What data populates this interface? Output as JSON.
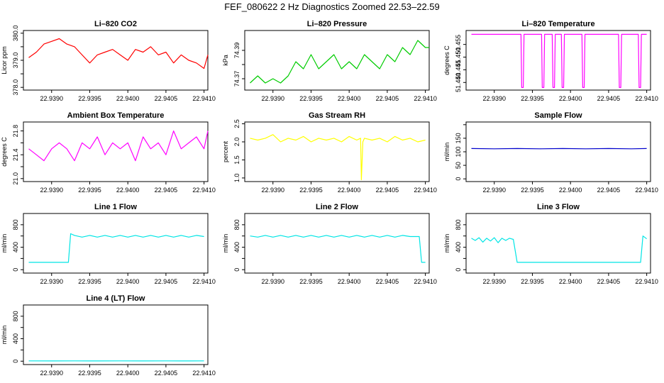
{
  "main_title": "FEF_080622  2 Hz Diagnostics Zoomed 22.53–22.59",
  "x_ticks": [
    "22.9390",
    "22.9395",
    "22.9400",
    "22.9405",
    "22.9410"
  ],
  "chart_data": [
    {
      "type": "line",
      "title": "Li–820 CO2",
      "ylabel": "Licor ppm",
      "color": "#ff0000",
      "xlim": [
        22.93863,
        22.94105
      ],
      "ylim": [
        377.9,
        380.1
      ],
      "yticks": [
        378.0,
        378.5,
        379.0,
        379.5,
        380.0
      ],
      "ytick_labels": [
        "378.0",
        "",
        "379.0",
        "",
        "380.0"
      ],
      "series": [
        {
          "x": [
            22.9387,
            22.9388,
            22.9389,
            22.939,
            22.9391,
            22.9392,
            22.9393,
            22.9394,
            22.9395,
            22.9396,
            22.9397,
            22.9398,
            22.9399,
            22.94,
            22.9401,
            22.9402,
            22.9403,
            22.9404,
            22.9405,
            22.9406,
            22.9407,
            22.9408,
            22.9409,
            22.941,
            22.94105
          ],
          "y": [
            379.1,
            379.3,
            379.6,
            379.7,
            379.8,
            379.6,
            379.5,
            379.2,
            378.9,
            379.2,
            379.3,
            379.4,
            379.2,
            379.0,
            379.4,
            379.3,
            379.5,
            379.2,
            379.3,
            378.9,
            379.2,
            379.0,
            378.9,
            378.7,
            379.2
          ]
        }
      ]
    },
    {
      "type": "line",
      "title": "Li–820 Pressure",
      "ylabel": "kPa",
      "color": "#00cc00",
      "xlim": [
        22.93863,
        22.94105
      ],
      "ylim": [
        74.362,
        74.404
      ],
      "yticks": [
        74.37,
        74.38,
        74.39
      ],
      "ytick_labels": [
        "74.37",
        "",
        "74.39"
      ],
      "series": [
        {
          "x": [
            22.9387,
            22.9388,
            22.9389,
            22.939,
            22.9391,
            22.9392,
            22.9393,
            22.9394,
            22.9395,
            22.9396,
            22.9397,
            22.9398,
            22.9399,
            22.94,
            22.9401,
            22.9402,
            22.9403,
            22.9404,
            22.9405,
            22.9406,
            22.9407,
            22.9408,
            22.9409,
            22.941,
            22.94105
          ],
          "y": [
            74.367,
            74.372,
            74.367,
            74.37,
            74.367,
            74.372,
            74.382,
            74.377,
            74.387,
            74.377,
            74.382,
            74.387,
            74.377,
            74.382,
            74.377,
            74.387,
            74.382,
            74.377,
            74.387,
            74.382,
            74.392,
            74.387,
            74.397,
            74.392,
            74.392
          ]
        }
      ]
    },
    {
      "type": "line",
      "title": "Li–820 Temperature",
      "ylabel": "degrees C",
      "color": "#ff00ff",
      "xlim": [
        22.93863,
        22.94105
      ],
      "ylim": [
        51.437,
        51.4605
      ],
      "yticks": [
        51.44,
        51.445,
        51.45,
        51.455
      ],
      "ytick_labels": [
        "51.440",
        "51.445",
        "51.450",
        "51.455"
      ],
      "series": [
        {
          "x": [
            22.9387,
            22.93935,
            22.93936,
            22.93938,
            22.93939,
            22.93962,
            22.93963,
            22.93965,
            22.93966,
            22.93976,
            22.93977,
            22.93979,
            22.9398,
            22.93988,
            22.93989,
            22.93991,
            22.93992,
            22.94015,
            22.94016,
            22.94018,
            22.94019,
            22.94063,
            22.94064,
            22.94066,
            22.94067,
            22.94089,
            22.9409,
            22.94092,
            22.94093,
            22.941
          ],
          "y": [
            51.459,
            51.459,
            51.438,
            51.438,
            51.459,
            51.459,
            51.438,
            51.438,
            51.459,
            51.459,
            51.438,
            51.438,
            51.459,
            51.459,
            51.438,
            51.438,
            51.459,
            51.459,
            51.438,
            51.438,
            51.459,
            51.459,
            51.438,
            51.438,
            51.459,
            51.459,
            51.438,
            51.438,
            51.459,
            51.459
          ]
        }
      ]
    },
    {
      "type": "line",
      "title": "Ambient Box Temperature",
      "ylabel": "degrees C",
      "color": "#ff00ff",
      "xlim": [
        22.93863,
        22.94105
      ],
      "ylim": [
        20.95,
        21.95
      ],
      "yticks": [
        21.0,
        21.2,
        21.4,
        21.6,
        21.8
      ],
      "ytick_labels": [
        "21.0",
        "",
        "21.4",
        "",
        "21.8"
      ],
      "series": [
        {
          "x": [
            22.9387,
            22.9388,
            22.9389,
            22.939,
            22.9391,
            22.9392,
            22.9393,
            22.9394,
            22.9395,
            22.9396,
            22.9397,
            22.9398,
            22.9399,
            22.94,
            22.9401,
            22.9402,
            22.9403,
            22.9404,
            22.9405,
            22.9406,
            22.9407,
            22.9408,
            22.9409,
            22.941,
            22.94105
          ],
          "y": [
            21.5,
            21.4,
            21.3,
            21.5,
            21.6,
            21.5,
            21.3,
            21.6,
            21.5,
            21.7,
            21.4,
            21.6,
            21.5,
            21.6,
            21.3,
            21.7,
            21.5,
            21.6,
            21.4,
            21.8,
            21.5,
            21.6,
            21.7,
            21.5,
            21.8
          ]
        }
      ]
    },
    {
      "type": "line",
      "title": "Gas Stream RH",
      "ylabel": "percent",
      "color": "#ffff00",
      "xlim": [
        22.93863,
        22.94105
      ],
      "ylim": [
        0.9,
        2.55
      ],
      "yticks": [
        1.0,
        1.5,
        2.0,
        2.5
      ],
      "ytick_labels": [
        "1.0",
        "1.5",
        "2.0",
        "2.5"
      ],
      "series": [
        {
          "x": [
            22.9387,
            22.9388,
            22.9389,
            22.939,
            22.9391,
            22.9392,
            22.9393,
            22.9394,
            22.9395,
            22.9396,
            22.9397,
            22.9398,
            22.9399,
            22.94,
            22.9401,
            22.94015,
            22.94016,
            22.94018,
            22.9402,
            22.9403,
            22.9404,
            22.9405,
            22.9406,
            22.9407,
            22.9408,
            22.9409,
            22.941
          ],
          "y": [
            2.1,
            2.05,
            2.1,
            2.2,
            2.0,
            2.1,
            2.05,
            2.15,
            2.0,
            2.1,
            2.05,
            2.1,
            2.0,
            2.15,
            2.05,
            2.1,
            0.95,
            2.0,
            2.1,
            2.05,
            2.1,
            2.0,
            2.15,
            2.05,
            2.1,
            2.0,
            2.05
          ]
        }
      ]
    },
    {
      "type": "line",
      "title": "Sample Flow",
      "ylabel": "ml/min",
      "color": "#0000cc",
      "xlim": [
        22.93863,
        22.94105
      ],
      "ylim": [
        -10,
        210
      ],
      "yticks": [
        0,
        50,
        100,
        150,
        200
      ],
      "ytick_labels": [
        "0",
        "50",
        "100",
        "150",
        ""
      ],
      "series": [
        {
          "x": [
            22.9387,
            22.939,
            22.9393,
            22.9396,
            22.9399,
            22.9402,
            22.9405,
            22.9408,
            22.941
          ],
          "y": [
            112,
            111,
            112,
            111,
            112,
            111,
            112,
            111,
            112
          ]
        }
      ]
    },
    {
      "type": "line",
      "title": "Line 1 Flow",
      "ylabel": "ml/min",
      "color": "#00e5e5",
      "xlim": [
        22.93863,
        22.94105
      ],
      "ylim": [
        -60,
        1000
      ],
      "yticks": [
        0,
        200,
        400,
        600,
        800
      ],
      "ytick_labels": [
        "0",
        "",
        "400",
        "",
        "800"
      ],
      "series": [
        {
          "x": [
            22.9387,
            22.93922,
            22.93925,
            22.9393,
            22.9394,
            22.9395,
            22.9396,
            22.9397,
            22.9398,
            22.9399,
            22.94,
            22.9401,
            22.9402,
            22.9403,
            22.9404,
            22.9405,
            22.9406,
            22.9407,
            22.9408,
            22.9409,
            22.941
          ],
          "y": [
            130,
            130,
            640,
            610,
            580,
            610,
            580,
            610,
            580,
            610,
            580,
            610,
            580,
            610,
            580,
            610,
            580,
            610,
            580,
            610,
            590
          ]
        }
      ]
    },
    {
      "type": "line",
      "title": "Line 2 Flow",
      "ylabel": "ml/min",
      "color": "#00e5e5",
      "xlim": [
        22.93863,
        22.94105
      ],
      "ylim": [
        -60,
        1000
      ],
      "yticks": [
        0,
        200,
        400,
        600,
        800
      ],
      "ytick_labels": [
        "0",
        "",
        "400",
        "",
        "800"
      ],
      "series": [
        {
          "x": [
            22.9387,
            22.9388,
            22.9389,
            22.939,
            22.9391,
            22.9392,
            22.9393,
            22.9394,
            22.9395,
            22.9396,
            22.9397,
            22.9398,
            22.9399,
            22.94,
            22.9401,
            22.9402,
            22.9403,
            22.9404,
            22.9405,
            22.9406,
            22.9407,
            22.9408,
            22.94092,
            22.94095,
            22.941
          ],
          "y": [
            600,
            580,
            610,
            580,
            610,
            580,
            610,
            580,
            610,
            580,
            610,
            580,
            610,
            580,
            610,
            580,
            610,
            580,
            610,
            580,
            610,
            590,
            590,
            130,
            130
          ]
        }
      ]
    },
    {
      "type": "line",
      "title": "Line 3 Flow",
      "ylabel": "ml/min",
      "color": "#00e5e5",
      "xlim": [
        22.93863,
        22.94105
      ],
      "ylim": [
        -60,
        1000
      ],
      "yticks": [
        0,
        200,
        400,
        600,
        800
      ],
      "ytick_labels": [
        "0",
        "",
        "400",
        "",
        "800"
      ],
      "series": [
        {
          "x": [
            22.9387,
            22.93875,
            22.9388,
            22.93885,
            22.9389,
            22.93895,
            22.939,
            22.93905,
            22.9391,
            22.93915,
            22.9392,
            22.93925,
            22.9393,
            22.9396,
            22.9399,
            22.9402,
            22.9405,
            22.94092,
            22.94095,
            22.941
          ],
          "y": [
            560,
            520,
            570,
            490,
            560,
            510,
            570,
            480,
            560,
            520,
            560,
            540,
            130,
            130,
            130,
            130,
            130,
            130,
            600,
            550
          ]
        }
      ]
    },
    {
      "type": "line",
      "title": "Line 4 (LT) Flow",
      "ylabel": "ml/min",
      "color": "#00e5e5",
      "xlim": [
        22.93863,
        22.94105
      ],
      "ylim": [
        -60,
        1000
      ],
      "yticks": [
        0,
        200,
        400,
        600,
        800
      ],
      "ytick_labels": [
        "0",
        "",
        "400",
        "",
        "800"
      ],
      "series": [
        {
          "x": [
            22.9387,
            22.939,
            22.9393,
            22.9396,
            22.9399,
            22.9402,
            22.9405,
            22.9408,
            22.941
          ],
          "y": [
            5,
            4,
            5,
            4,
            5,
            4,
            5,
            4,
            5
          ]
        }
      ]
    }
  ]
}
